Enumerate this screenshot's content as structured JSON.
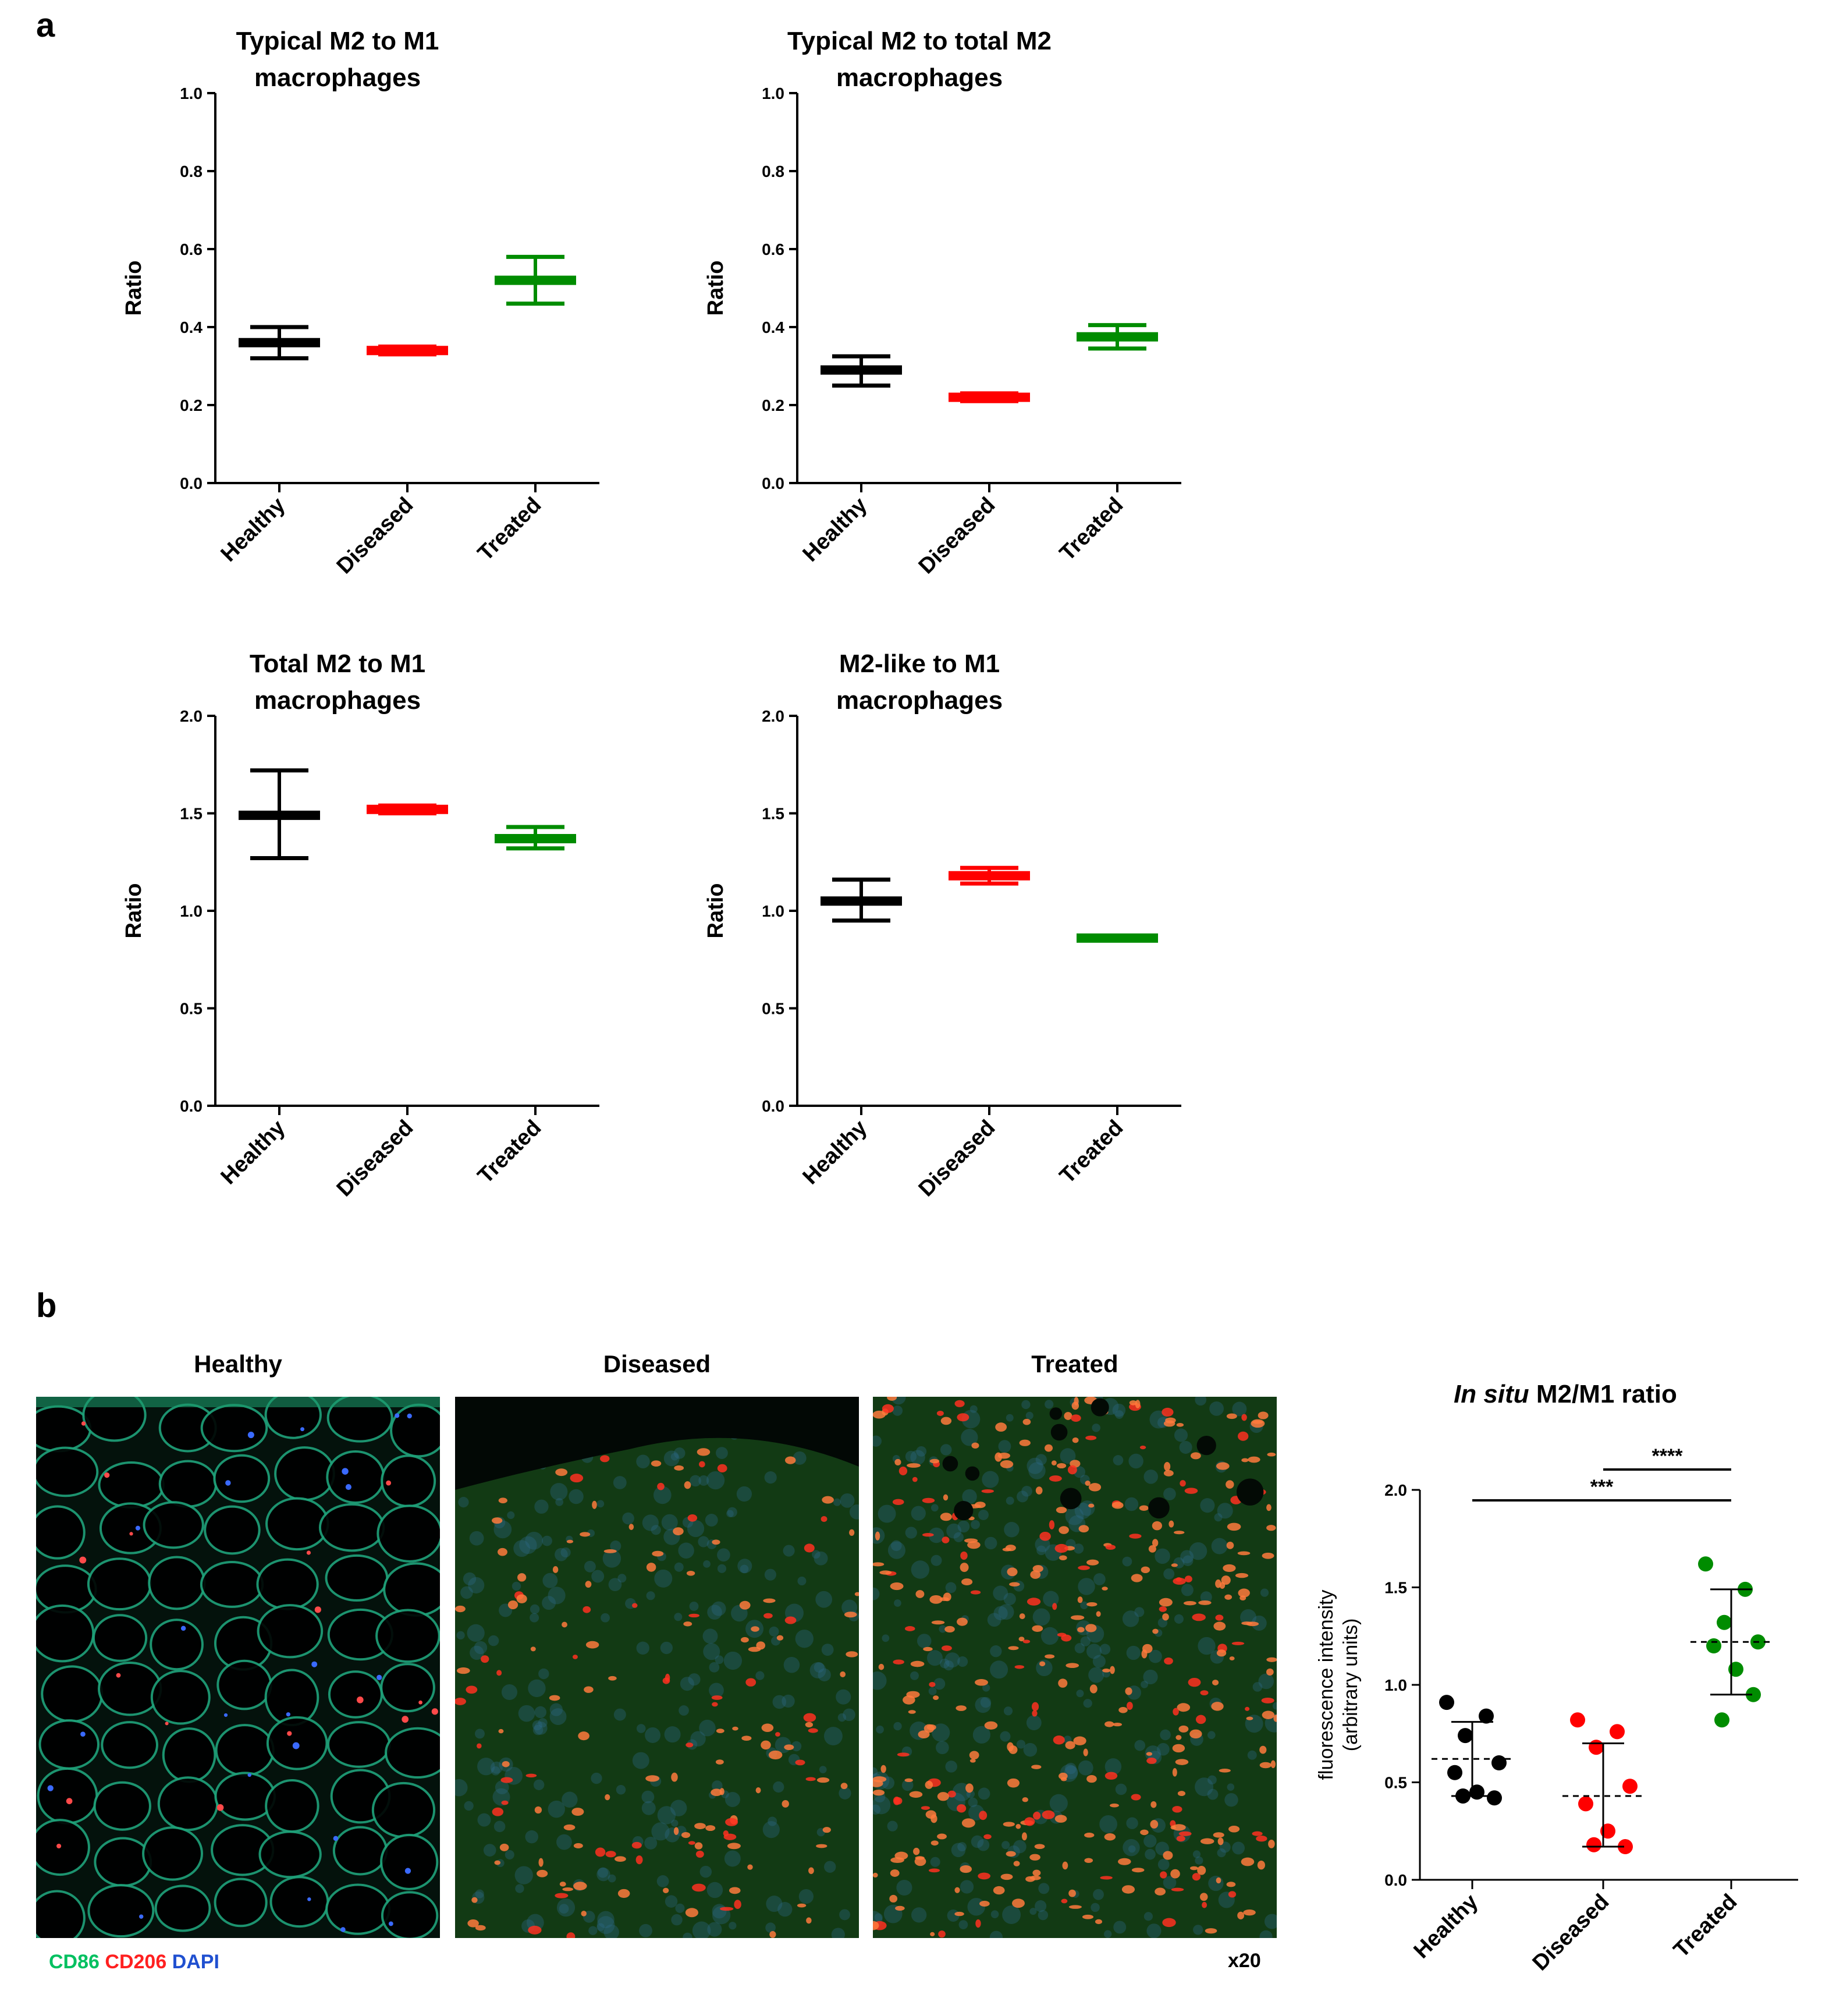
{
  "panel_a_label": "a",
  "panel_b_label": "b",
  "colors": {
    "Healthy": "#000000",
    "Diseased": "#ff0000",
    "Treated": "#008c00"
  },
  "chart_data": [
    {
      "type": "range",
      "title": "Typical M2 to M1",
      "title2": "macrophages",
      "ylabel": "Ratio",
      "ylim": [
        0,
        1.0
      ],
      "yticks": [
        "0.0",
        "0.2",
        "0.4",
        "0.6",
        "0.8",
        "1.0"
      ],
      "categories": [
        "Healthy",
        "Diseased",
        "Treated"
      ],
      "center": [
        0.36,
        0.34,
        0.52
      ],
      "low": [
        0.32,
        0.33,
        0.46
      ],
      "high": [
        0.4,
        0.35,
        0.58
      ]
    },
    {
      "type": "range",
      "title": "Typical M2 to total M2",
      "title2": "macrophages",
      "ylabel": "Ratio",
      "ylim": [
        0,
        1.0
      ],
      "yticks": [
        "0.0",
        "0.2",
        "0.4",
        "0.6",
        "0.8",
        "1.0"
      ],
      "categories": [
        "Healthy",
        "Diseased",
        "Treated"
      ],
      "center": [
        0.29,
        0.22,
        0.375
      ],
      "low": [
        0.25,
        0.21,
        0.345
      ],
      "high": [
        0.325,
        0.23,
        0.405
      ]
    },
    {
      "type": "range",
      "title": "Total M2 to M1",
      "title2": "macrophages",
      "ylabel": "Ratio",
      "ylim": [
        0,
        2.0
      ],
      "yticks": [
        "0.0",
        "0.5",
        "1.0",
        "1.5",
        "2.0"
      ],
      "categories": [
        "Healthy",
        "Diseased",
        "Treated"
      ],
      "center": [
        1.49,
        1.52,
        1.37
      ],
      "low": [
        1.27,
        1.5,
        1.32
      ],
      "high": [
        1.72,
        1.54,
        1.43
      ]
    },
    {
      "type": "range",
      "title": "M2-like to M1",
      "title2": "macrophages",
      "ylabel": "Ratio",
      "ylim": [
        0,
        2.0
      ],
      "yticks": [
        "0.0",
        "0.5",
        "1.0",
        "1.5",
        "2.0"
      ],
      "categories": [
        "Healthy",
        "Diseased",
        "Treated"
      ],
      "center": [
        1.05,
        1.18,
        0.86
      ],
      "low": [
        0.95,
        1.14,
        0.86
      ],
      "high": [
        1.16,
        1.22,
        0.86
      ]
    },
    {
      "type": "scatter",
      "title_italic": "In situ",
      "title_rest": " M2/M1 ratio",
      "ylabel": "fluorescence intensity",
      "ylabel2": "(arbitrary units)",
      "ylim": [
        0,
        2.0
      ],
      "yticks": [
        "0.0",
        "0.5",
        "1.0",
        "1.5",
        "2.0"
      ],
      "categories": [
        "Healthy",
        "Diseased",
        "Treated"
      ],
      "points": [
        [
          0.91,
          0.84,
          0.74,
          0.6,
          0.55,
          0.45,
          0.42,
          0.43
        ],
        [
          0.82,
          0.76,
          0.68,
          0.48,
          0.39,
          0.25,
          0.17,
          0.18
        ],
        [
          1.62,
          1.49,
          1.32,
          1.22,
          1.2,
          1.08,
          0.95,
          0.82
        ]
      ],
      "mean": [
        0.62,
        0.43,
        1.22
      ],
      "sd_low": [
        0.43,
        0.17,
        0.95
      ],
      "sd_high": [
        0.81,
        0.7,
        1.49
      ],
      "significance": [
        {
          "from": 1,
          "to": 2,
          "label": "****"
        },
        {
          "from": 0,
          "to": 2,
          "label": "***"
        }
      ]
    }
  ],
  "micrographs": {
    "titles": [
      "Healthy",
      "Diseased",
      "Treated"
    ],
    "legend": {
      "cd86": "CD86",
      "cd206": "CD206",
      "dapi": "DAPI"
    },
    "magnification": "x20"
  }
}
